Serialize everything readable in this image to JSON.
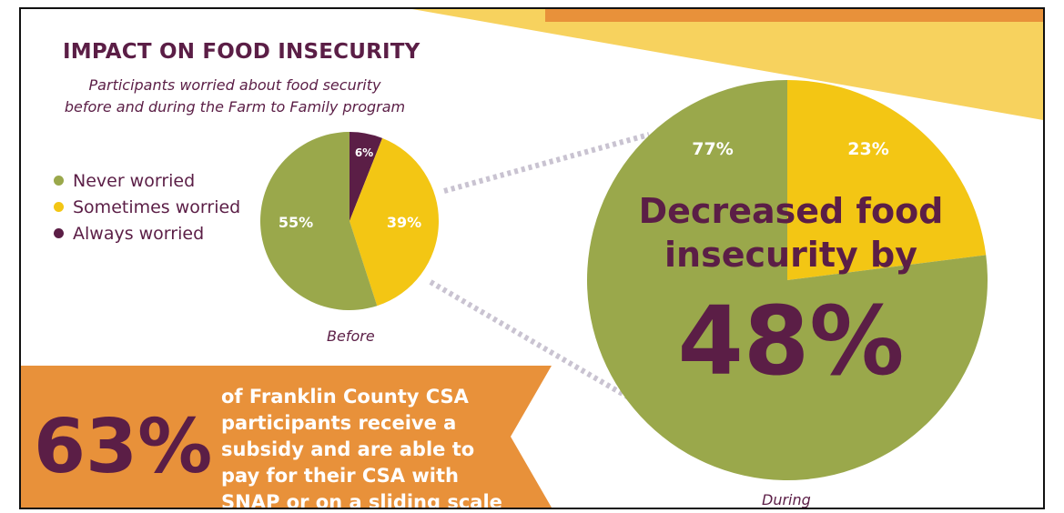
{
  "title": "IMPACT ON FOOD INSECURITY",
  "subtitle_lines": [
    "Participants worried about food security",
    "before and during the Farm to Family program"
  ],
  "colors": {
    "never": "#9aa84b",
    "sometimes": "#f3c614",
    "always": "#5b1e46",
    "orange": "#e8913a",
    "light_yellow": "#f7d25e",
    "text": "#5b1e46"
  },
  "chart_data": [
    {
      "type": "pie",
      "caption": "Before",
      "labels": [
        "Never worried",
        "Sometimes worried",
        "Always worried"
      ],
      "values": [
        55,
        39,
        6
      ],
      "data_labels": [
        "55%",
        "39%",
        "6%"
      ],
      "legend_position": "left"
    },
    {
      "type": "pie",
      "caption": "During",
      "labels": [
        "Never worried",
        "Sometimes worried"
      ],
      "values": [
        77,
        23
      ],
      "data_labels": [
        "77%",
        "23%"
      ]
    }
  ],
  "legend": [
    {
      "label": "Never worried",
      "color": "#9aa84b"
    },
    {
      "label": "Sometimes worried",
      "color": "#f3c614"
    },
    {
      "label": "Always worried",
      "color": "#5b1e46"
    }
  ],
  "headline": {
    "line1": "Decreased food",
    "line2": "insecurity by",
    "value": "48%"
  },
  "banner": {
    "value": "63%",
    "lines": [
      "of Franklin County CSA",
      "participants receive a",
      "subsidy and are able to",
      "pay for their CSA with",
      "SNAP or on a sliding scale"
    ]
  }
}
